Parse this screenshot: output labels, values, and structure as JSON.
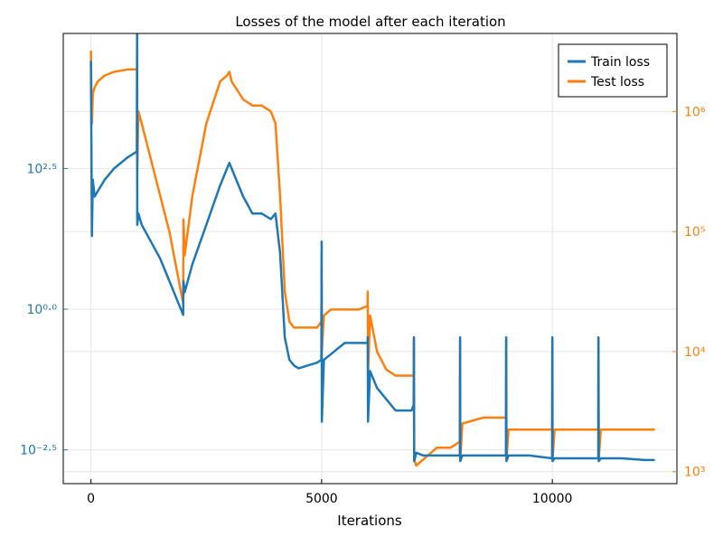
{
  "chart_data": {
    "type": "line",
    "title": "Losses of the model after each iteration",
    "xlabel": "Iterations",
    "xlim": [
      -600,
      12700
    ],
    "x_ticks": [
      0,
      5000,
      10000
    ],
    "x_tick_labels": [
      "0",
      "5000",
      "10000"
    ],
    "grid": true,
    "legend_position": "top-right",
    "left_axis": {
      "scale": "log10",
      "ylim_log10": [
        -3.1,
        4.9
      ],
      "ticks_log10": [
        -2.5,
        0.0,
        2.5
      ],
      "tick_labels": [
        "10⁻²·⁵",
        "10⁰·⁰",
        "10²·⁵"
      ],
      "color": "#1f77b4"
    },
    "right_axis": {
      "scale": "log10",
      "ylim_log10": [
        2.9,
        6.65
      ],
      "ticks_log10": [
        3,
        4,
        5,
        6
      ],
      "tick_labels": [
        "10³",
        "10⁴",
        "10⁵",
        "10⁶"
      ],
      "color": "#ff7f0e"
    },
    "series": [
      {
        "name": "Train loss",
        "axis": "left",
        "color": "#1f77b4",
        "x": [
          0,
          20,
          40,
          80,
          150,
          300,
          500,
          800,
          995,
          1000,
          1005,
          1030,
          1100,
          1300,
          1500,
          1700,
          1900,
          2000,
          2005,
          2030,
          2200,
          2500,
          2800,
          2950,
          3000,
          3050,
          3300,
          3500,
          3700,
          3900,
          4000,
          4100,
          4200,
          4300,
          4400,
          4500,
          4700,
          4900,
          4995,
          5000,
          5005,
          5050,
          5200,
          5500,
          5800,
          5995,
          6000,
          6005,
          6050,
          6200,
          6400,
          6600,
          6800,
          6950,
          6995,
          7000,
          7005,
          7050,
          7200,
          7500,
          7800,
          7995,
          8000,
          8005,
          8050,
          8500,
          8995,
          9000,
          9005,
          9050,
          9500,
          9995,
          10000,
          10005,
          10050,
          10500,
          10995,
          11000,
          11005,
          11050,
          11500,
          12000,
          12200
        ],
        "y_log10": [
          4.4,
          1.3,
          2.3,
          2.0,
          2.1,
          2.3,
          2.5,
          2.7,
          2.8,
          4.9,
          1.5,
          1.7,
          1.5,
          1.2,
          0.9,
          0.5,
          0.1,
          -0.1,
          0.5,
          0.3,
          0.8,
          1.5,
          2.2,
          2.5,
          2.6,
          2.5,
          2.0,
          1.7,
          1.7,
          1.6,
          1.7,
          1.0,
          -0.5,
          -0.9,
          -1.0,
          -1.05,
          -1.0,
          -0.95,
          -0.9,
          1.2,
          -2.0,
          -0.9,
          -0.8,
          -0.6,
          -0.6,
          -0.6,
          -0.5,
          -2.0,
          -1.1,
          -1.4,
          -1.6,
          -1.8,
          -1.8,
          -1.8,
          -1.7,
          -0.5,
          -2.7,
          -2.55,
          -2.6,
          -2.6,
          -2.6,
          -2.6,
          -0.5,
          -2.7,
          -2.6,
          -2.6,
          -2.6,
          -0.5,
          -2.7,
          -2.6,
          -2.6,
          -2.65,
          -0.5,
          -2.7,
          -2.65,
          -2.65,
          -2.65,
          -0.5,
          -2.7,
          -2.65,
          -2.65,
          -2.68,
          -2.68
        ]
      },
      {
        "name": "Test loss",
        "axis": "right",
        "color": "#ff7f0e",
        "x": [
          0,
          20,
          40,
          80,
          150,
          300,
          500,
          800,
          995,
          1000,
          1005,
          1030,
          1100,
          1300,
          1500,
          1700,
          1900,
          2000,
          2005,
          2030,
          2200,
          2500,
          2800,
          2950,
          3000,
          3050,
          3300,
          3500,
          3700,
          3900,
          4000,
          4100,
          4200,
          4300,
          4400,
          4500,
          4700,
          4900,
          4995,
          5000,
          5005,
          5050,
          5200,
          5500,
          5800,
          5995,
          6000,
          6005,
          6050,
          6200,
          6400,
          6600,
          6800,
          6950,
          6995,
          7000,
          7005,
          7050,
          7200,
          7500,
          7800,
          7995,
          8000,
          8005,
          8050,
          8500,
          8995,
          9000,
          9005,
          9050,
          9500,
          9995,
          10000,
          10005,
          10050,
          10500,
          10995,
          11000,
          11005,
          11050,
          11500,
          12000,
          12200
        ],
        "y_log10": [
          6.5,
          5.9,
          6.15,
          6.2,
          6.25,
          6.3,
          6.33,
          6.35,
          6.35,
          6.35,
          5.5,
          6.0,
          5.9,
          5.6,
          5.3,
          5.0,
          4.6,
          4.4,
          5.1,
          4.8,
          5.3,
          5.9,
          6.25,
          6.3,
          6.33,
          6.25,
          6.1,
          6.05,
          6.05,
          6.0,
          5.9,
          5.3,
          4.5,
          4.25,
          4.2,
          4.2,
          4.2,
          4.2,
          4.25,
          4.6,
          4.0,
          4.3,
          4.35,
          4.35,
          4.35,
          4.38,
          4.5,
          3.8,
          4.3,
          4.0,
          3.85,
          3.8,
          3.8,
          3.8,
          3.8,
          4.1,
          3.1,
          3.05,
          3.1,
          3.2,
          3.2,
          3.25,
          4.1,
          3.1,
          3.4,
          3.45,
          3.45,
          4.1,
          3.1,
          3.35,
          3.35,
          3.35,
          4.1,
          3.1,
          3.35,
          3.35,
          3.35,
          4.1,
          3.1,
          3.35,
          3.35,
          3.35,
          3.35
        ]
      }
    ]
  }
}
